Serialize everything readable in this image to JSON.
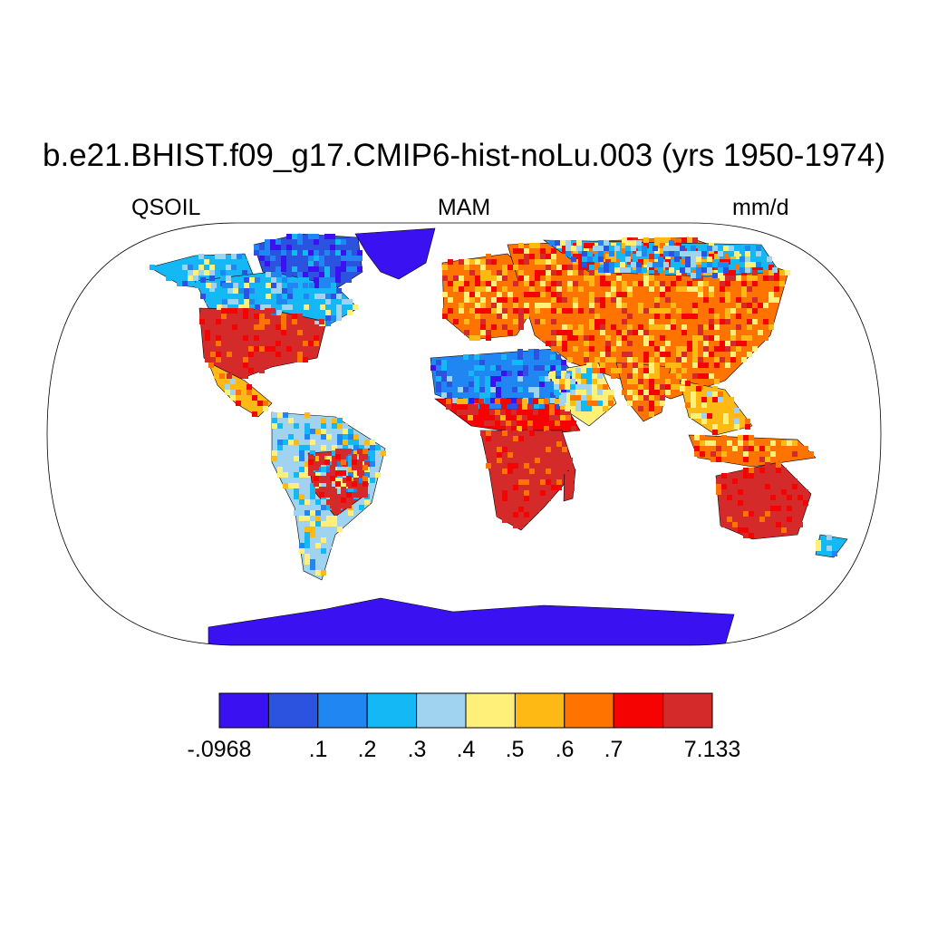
{
  "title": "b.e21.BHIST.f09_g17.CMIP6-hist-noLu.003 (yrs 1950-1974)",
  "left_label": "QSOIL",
  "center_label": "MAM",
  "right_label": "mm/d",
  "colorbar": {
    "colors": [
      "#3a12f2",
      "#2c52e0",
      "#1f86f2",
      "#13b8f5",
      "#9fd3f0",
      "#fff07a",
      "#ffb914",
      "#ff7300",
      "#f50202",
      "#d42a2a"
    ],
    "labels": [
      "-.0968",
      ".1",
      ".2",
      ".3",
      ".4",
      ".5",
      ".6",
      ".7",
      "7.133"
    ]
  },
  "map": {
    "projection": "Robinson",
    "ocean_color": "#ffffff",
    "outline_color": "#000000"
  }
}
